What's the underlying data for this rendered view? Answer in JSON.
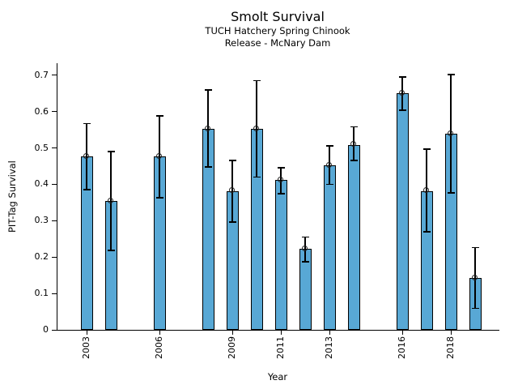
{
  "chart_data": {
    "type": "bar",
    "title": "Smolt Survival",
    "subtitle1": "TUCH Hatchery Spring Chinook",
    "subtitle2": "Release - McNary Dam",
    "xlabel": "Year",
    "ylabel": "PIT-Tag Survival",
    "x": [
      2003,
      2004,
      2006,
      2008,
      2009,
      2010,
      2011,
      2012,
      2013,
      2014,
      2016,
      2017,
      2018,
      2019
    ],
    "values": [
      0.476,
      0.354,
      0.476,
      0.552,
      0.382,
      0.553,
      0.412,
      0.223,
      0.453,
      0.509,
      0.65,
      0.382,
      0.54,
      0.143
    ],
    "err_low": [
      0.386,
      0.218,
      0.364,
      0.447,
      0.296,
      0.42,
      0.374,
      0.187,
      0.4,
      0.466,
      0.604,
      0.269,
      0.376,
      0.059
    ],
    "err_high": [
      0.567,
      0.49,
      0.588,
      0.659,
      0.466,
      0.685,
      0.445,
      0.255,
      0.506,
      0.558,
      0.696,
      0.496,
      0.702,
      0.226
    ],
    "xticks": [
      2003,
      2006,
      2009,
      2011,
      2013,
      2016,
      2018
    ],
    "xtick_labels": [
      "2003",
      "2006",
      "2009",
      "2011",
      "2013",
      "2016",
      "2018"
    ],
    "yticks": [
      0,
      0.1,
      0.2,
      0.3,
      0.4,
      0.5,
      0.6,
      0.7
    ],
    "ytick_labels": [
      "0",
      "0.1",
      "0.2",
      "0.3",
      "0.4",
      "0.5",
      "0.6",
      "0.7"
    ],
    "xlim": [
      2001.8,
      2020.0
    ],
    "ylim": [
      0,
      0.733
    ],
    "bar_width_years": 0.5,
    "bar_color": "#58A8D5",
    "edge_color": "#000000",
    "marker": "open-circle",
    "grid": false,
    "legend": "none"
  }
}
